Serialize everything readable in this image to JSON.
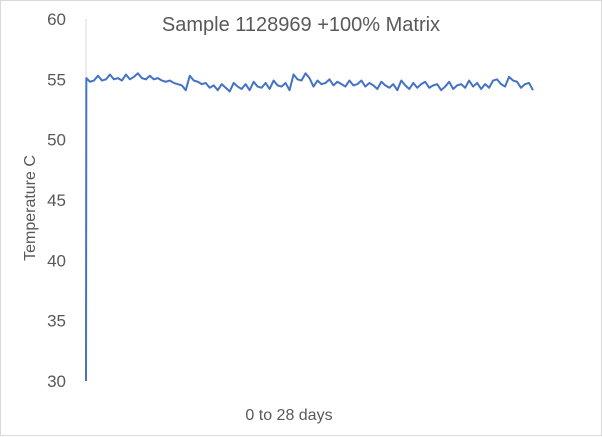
{
  "chart_data": {
    "type": "line",
    "title": "Sample 1128969 +100% Matrix",
    "xlabel": "0 to 28 days",
    "ylabel": "Temperature C",
    "ylim": [
      30,
      60
    ],
    "yticks": [
      "30",
      "35",
      "40",
      "45",
      "50",
      "55",
      "60"
    ],
    "xlim": [
      0,
      28
    ],
    "grid": false,
    "line_color": "#4472C4",
    "series": [
      {
        "x": [
          0,
          0.02,
          0.25,
          0.5,
          0.75,
          1.0,
          1.25,
          1.5,
          1.75,
          2.0,
          2.25,
          2.5,
          2.75,
          3.0,
          3.25,
          3.5,
          3.75,
          4.0,
          4.25,
          4.5,
          4.75,
          5.0,
          5.25,
          5.5,
          5.75,
          6.0,
          6.25,
          6.5,
          6.75,
          7.0,
          7.25,
          7.5,
          7.75,
          8.0,
          8.25,
          8.5,
          8.75,
          9.0,
          9.25,
          9.5,
          9.75,
          10.0,
          10.25,
          10.5,
          10.75,
          11.0,
          11.25,
          11.5,
          11.75,
          12.0,
          12.25,
          12.5,
          12.75,
          13.0,
          13.25,
          13.5,
          13.75,
          14.0,
          14.25,
          14.5,
          14.75,
          15.0,
          15.25,
          15.5,
          15.75,
          16.0,
          16.25,
          16.5,
          16.75,
          17.0,
          17.25,
          17.5,
          17.75,
          18.0,
          18.25,
          18.5,
          18.75,
          19.0,
          19.25,
          19.5,
          19.75,
          20.0,
          20.25,
          20.5,
          20.75,
          21.0,
          21.25,
          21.5,
          21.75,
          22.0,
          22.25,
          22.5,
          22.75,
          23.0,
          23.25,
          23.5,
          23.75,
          24.0,
          24.25,
          24.5,
          24.75,
          25.0,
          25.25,
          25.5,
          25.75,
          26.0,
          26.25,
          26.5,
          26.75,
          27.0,
          27.25,
          27.5,
          27.75,
          28.0
        ],
        "y": [
          30,
          55.1,
          54.8,
          54.9,
          55.3,
          54.9,
          55.0,
          55.4,
          55.0,
          55.1,
          54.9,
          55.4,
          55.0,
          55.2,
          55.5,
          55.1,
          55.0,
          55.3,
          55.0,
          55.1,
          54.9,
          54.8,
          54.9,
          54.7,
          54.6,
          54.5,
          54.1,
          55.3,
          54.9,
          54.8,
          54.6,
          54.7,
          54.3,
          54.5,
          54.1,
          54.6,
          54.3,
          54.0,
          54.7,
          54.4,
          54.2,
          54.6,
          54.1,
          54.8,
          54.4,
          54.3,
          54.7,
          54.2,
          54.9,
          54.5,
          54.4,
          54.7,
          54.1,
          55.4,
          55.0,
          54.9,
          55.5,
          55.1,
          54.4,
          54.9,
          54.6,
          54.7,
          55.0,
          54.5,
          54.8,
          54.6,
          54.4,
          54.9,
          54.5,
          54.6,
          54.9,
          54.4,
          54.7,
          54.5,
          54.2,
          54.8,
          54.5,
          54.3,
          54.6,
          54.1,
          54.9,
          54.5,
          54.2,
          54.7,
          54.3,
          54.6,
          54.8,
          54.3,
          54.5,
          54.6,
          54.1,
          54.4,
          54.8,
          54.2,
          54.5,
          54.6,
          54.3,
          54.9,
          54.4,
          54.7,
          54.2,
          54.6,
          54.3,
          54.9,
          55.0,
          54.6,
          54.4,
          55.2,
          54.9,
          54.8,
          54.3,
          54.6,
          54.7,
          54.1
        ]
      }
    ]
  }
}
